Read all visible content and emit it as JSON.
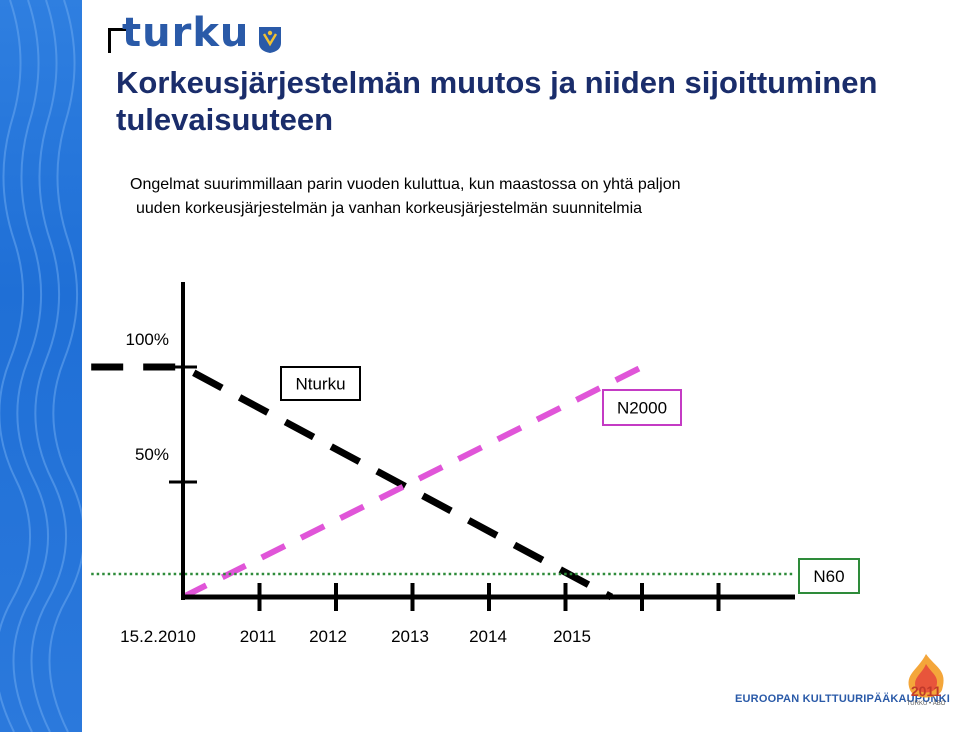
{
  "brand": {
    "logo_text": "turku",
    "footer_text": "EUROOPAN KULTTUURIPÄÄKAUPUNKI",
    "footer_year": "2011",
    "footer_sub": "TURKU • ÅBO"
  },
  "slide": {
    "title": "Korkeusjärjestelmän muutos ja  niiden sijoittuminen tulevaisuuteen",
    "subtitle_line1": "Ongelmat suurimmillaan parin vuoden kuluttua, kun maastossa on yhtä paljon",
    "subtitle_line2": "uuden korkeusjärjestelmän ja vanhan korkeusjärjestelmän suunnitelmia"
  },
  "chart_data": {
    "type": "line",
    "x_ticks": [
      "15.2.2010",
      "2011",
      "2012",
      "2013",
      "2014",
      "2015"
    ],
    "y_ticks": [
      {
        "label": "100%",
        "value": 100
      },
      {
        "label": "50%",
        "value": 50
      }
    ],
    "xlim": [
      0,
      8
    ],
    "ylim": [
      0,
      120
    ],
    "series": [
      {
        "name": "Nturku",
        "color": "#000000",
        "style": "dashed",
        "points": [
          [
            -1.2,
            100
          ],
          [
            0,
            100
          ],
          [
            5.6,
            0
          ]
        ]
      },
      {
        "name": "N2000",
        "color": "#e055d8",
        "style": "dashed",
        "points": [
          [
            0,
            0
          ],
          [
            6,
            100
          ]
        ]
      },
      {
        "name": "N60",
        "color": "#2e8b3a",
        "style": "dotted",
        "points": [
          [
            -1.2,
            10
          ],
          [
            8,
            10
          ]
        ]
      }
    ],
    "labels": [
      {
        "text": "Nturku",
        "border": "#000000"
      },
      {
        "text": "N2000",
        "border": "#c43bc4"
      },
      {
        "text": "N60",
        "border": "#2e8b3a"
      }
    ]
  }
}
